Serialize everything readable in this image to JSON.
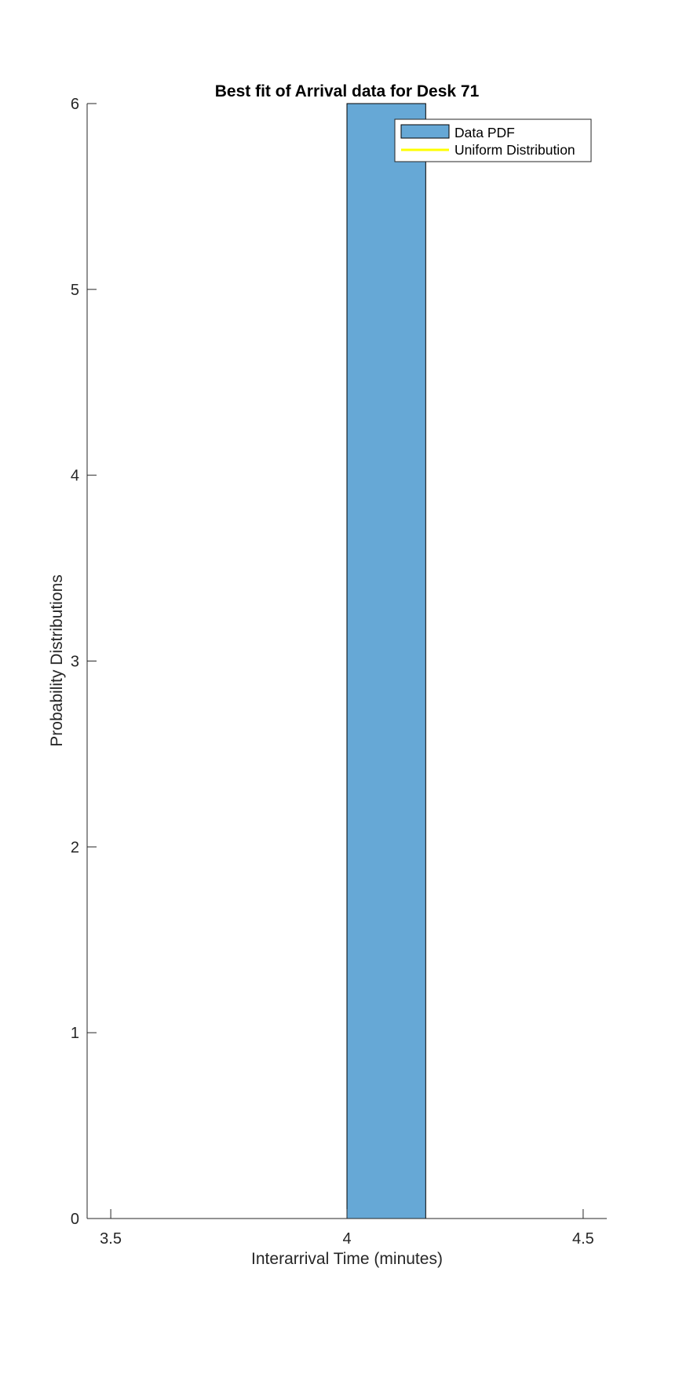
{
  "chart_data": {
    "type": "bar",
    "title": "Best fit of Arrival data for Desk 71",
    "xlabel": "Interarrival Time (minutes)",
    "ylabel": "Probability Distributions",
    "xlim": [
      3.45,
      4.55
    ],
    "ylim": [
      0,
      6
    ],
    "xticks": [
      3.5,
      4,
      4.5
    ],
    "xtick_labels": [
      "3.5",
      "4",
      "4.5"
    ],
    "yticks": [
      0,
      1,
      2,
      3,
      4,
      5,
      6
    ],
    "ytick_labels": [
      "0",
      "1",
      "2",
      "3",
      "4",
      "5",
      "6"
    ],
    "grid": false,
    "legend_position": "top-right",
    "series": [
      {
        "name": "Data PDF",
        "kind": "histogram",
        "color": "#66a8d6",
        "edge_color": "#000000",
        "bins": [
          {
            "x_start": 4.0,
            "x_end": 4.1667,
            "value": 6
          }
        ]
      },
      {
        "name": "Uniform Distribution",
        "kind": "line",
        "color": "#ffff00",
        "points": []
      }
    ]
  }
}
